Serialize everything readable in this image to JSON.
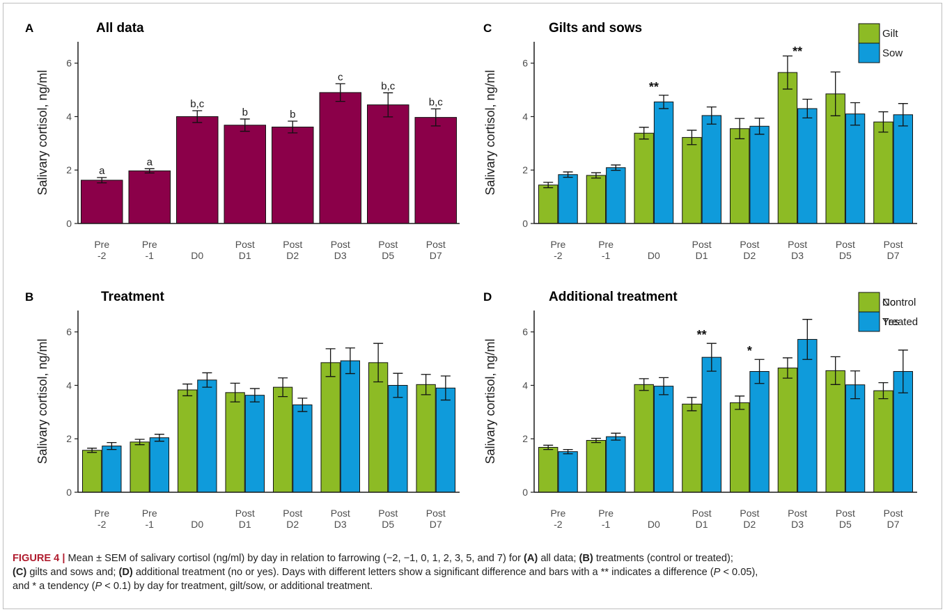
{
  "caption": {
    "label": "FIGURE 4 |",
    "line1_text": " Mean ± SEM of salivary cortisol (ng/ml) by day in relation to farrowing (−2, −1, 0, 1, 2, 3, 5, and 7) for ",
    "line1_a": "(A)",
    "line1_a_text": " all data; ",
    "line1_b": "(B)",
    "line1_b_text": " treatments (control or treated);",
    "line2_c": "(C)",
    "line2_c_text": " gilts and sows and; ",
    "line2_d": "(D)",
    "line2_d_text": " additional treatment (no or yes). Days with different letters show a significant difference and bars with a ** indicates a difference (",
    "p1_symbol": "P",
    "p1_text": " < 0.05),",
    "line3_text": "and * a tendency (",
    "p2_symbol": "P",
    "p2_text": " < 0.1) by day for treatment, gilt/sow, or additional treatment."
  },
  "colors": {
    "maroon": "#8b0049",
    "green": "#8dbb25",
    "blue": "#0f9bdb",
    "axis": "#1a1a1a"
  },
  "chart_data": [
    {
      "panel": "A",
      "title": "All data",
      "type": "bar",
      "ylabel": "Salivary cortisol, ng/ml",
      "ylim": [
        0,
        6.8
      ],
      "yticks": [
        0,
        2,
        4,
        6
      ],
      "categories": [
        [
          "Pre",
          "-2"
        ],
        [
          "Pre",
          "-1"
        ],
        [
          "",
          "D0"
        ],
        [
          "Post",
          "D1"
        ],
        [
          "Post",
          "D2"
        ],
        [
          "Post",
          "D3"
        ],
        [
          "Post",
          "D5"
        ],
        [
          "Post",
          "D7"
        ]
      ],
      "series": [
        {
          "values": [
            1.62,
            1.97,
            4.0,
            3.68,
            3.61,
            4.9,
            4.44,
            3.97
          ],
          "errors": [
            0.1,
            0.08,
            0.22,
            0.23,
            0.22,
            0.33,
            0.45,
            0.32
          ],
          "color": "#8b0049"
        }
      ],
      "bar_labels": [
        "a",
        "a",
        "b,c",
        "b",
        "b",
        "c",
        "b,c",
        "b,c"
      ],
      "legend": null
    },
    {
      "panel": "B",
      "title": "Treatment",
      "type": "bar",
      "ylabel": "Salivary cortisol, ng/ml",
      "ylim": [
        0,
        6.8
      ],
      "yticks": [
        0,
        2,
        4,
        6
      ],
      "categories": [
        [
          "Pre",
          "-2"
        ],
        [
          "Pre",
          "-1"
        ],
        [
          "",
          "D0"
        ],
        [
          "Post",
          "D1"
        ],
        [
          "Post",
          "D2"
        ],
        [
          "Post",
          "D3"
        ],
        [
          "Post",
          "D5"
        ],
        [
          "Post",
          "D7"
        ]
      ],
      "series": [
        {
          "name": "Control",
          "values": [
            1.57,
            1.88,
            3.83,
            3.73,
            3.93,
            4.85,
            4.85,
            4.03
          ],
          "errors": [
            0.08,
            0.1,
            0.22,
            0.35,
            0.35,
            0.52,
            0.72,
            0.38
          ],
          "color": "#8dbb25"
        },
        {
          "name": "Treated",
          "values": [
            1.73,
            2.04,
            4.2,
            3.63,
            3.27,
            4.92,
            4.0,
            3.9
          ],
          "errors": [
            0.13,
            0.13,
            0.27,
            0.25,
            0.25,
            0.48,
            0.45,
            0.45
          ],
          "color": "#0f9bdb"
        }
      ],
      "stars": [
        "",
        "",
        "",
        "",
        "",
        "",
        "",
        ""
      ],
      "legend": "top-right"
    },
    {
      "panel": "C",
      "title": "Gilts and sows",
      "type": "bar",
      "ylabel": "Salivary cortisol, ng/ml",
      "ylim": [
        0,
        6.8
      ],
      "yticks": [
        0,
        2,
        4,
        6
      ],
      "categories": [
        [
          "Pre",
          "-2"
        ],
        [
          "Pre",
          "-1"
        ],
        [
          "",
          "D0"
        ],
        [
          "Post",
          "D1"
        ],
        [
          "Post",
          "D2"
        ],
        [
          "Post",
          "D3"
        ],
        [
          "Post",
          "D5"
        ],
        [
          "Post",
          "D7"
        ]
      ],
      "series": [
        {
          "name": "Gilt",
          "values": [
            1.44,
            1.8,
            3.38,
            3.22,
            3.55,
            5.65,
            4.85,
            3.8
          ],
          "errors": [
            0.1,
            0.1,
            0.22,
            0.27,
            0.38,
            0.62,
            0.82,
            0.38
          ],
          "color": "#8dbb25"
        },
        {
          "name": "Sow",
          "values": [
            1.83,
            2.09,
            4.55,
            4.04,
            3.64,
            4.3,
            4.1,
            4.07
          ],
          "errors": [
            0.1,
            0.1,
            0.25,
            0.32,
            0.3,
            0.35,
            0.42,
            0.42
          ],
          "color": "#0f9bdb"
        }
      ],
      "stars": [
        "",
        "",
        "**",
        "",
        "",
        "**",
        "",
        ""
      ],
      "legend": "top-right"
    },
    {
      "panel": "D",
      "title": "Additional treatment",
      "type": "bar",
      "ylabel": "Salivary cortisol, ng/ml",
      "ylim": [
        0,
        6.8
      ],
      "yticks": [
        0,
        2,
        4,
        6
      ],
      "categories": [
        [
          "Pre",
          "-2"
        ],
        [
          "Pre",
          "-1"
        ],
        [
          "",
          "D0"
        ],
        [
          "Post",
          "D1"
        ],
        [
          "Post",
          "D2"
        ],
        [
          "Post",
          "D3"
        ],
        [
          "Post",
          "D5"
        ],
        [
          "Post",
          "D7"
        ]
      ],
      "series": [
        {
          "name": "No",
          "values": [
            1.68,
            1.94,
            4.03,
            3.3,
            3.35,
            4.65,
            4.55,
            3.8
          ],
          "errors": [
            0.08,
            0.08,
            0.22,
            0.25,
            0.25,
            0.38,
            0.52,
            0.3
          ],
          "color": "#8dbb25"
        },
        {
          "name": "Yes",
          "values": [
            1.52,
            2.08,
            3.97,
            5.05,
            4.52,
            5.72,
            4.02,
            4.52
          ],
          "errors": [
            0.08,
            0.13,
            0.32,
            0.52,
            0.45,
            0.75,
            0.52,
            0.8
          ],
          "color": "#0f9bdb"
        }
      ],
      "stars": [
        "",
        "",
        "",
        "**",
        "*",
        "",
        "",
        ""
      ],
      "legend": "top-right"
    }
  ]
}
